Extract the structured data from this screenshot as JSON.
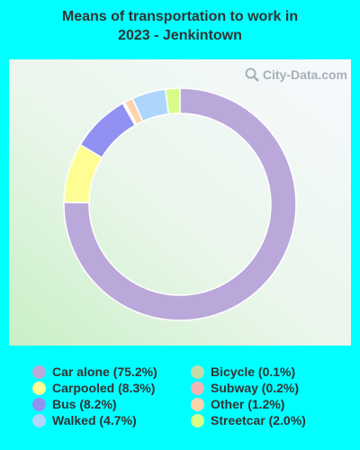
{
  "chart_data": {
    "type": "pie",
    "title_line1": "Means of transportation to work in",
    "title_line2": "2023 - Jenkintown",
    "watermark": "City-Data.com",
    "slices": [
      {
        "label": "Car alone (75.2%)",
        "value": 75.2,
        "color": "#bba8da"
      },
      {
        "label": "Carpooled (8.3%)",
        "value": 8.3,
        "color": "#fdfd94"
      },
      {
        "label": "Bus (8.2%)",
        "value": 8.2,
        "color": "#9191f1"
      },
      {
        "label": "Bicycle (0.1%)",
        "value": 0.1,
        "color": "#c2dcaa"
      },
      {
        "label": "Subway (0.2%)",
        "value": 0.2,
        "color": "#f2b4b4"
      },
      {
        "label": "Other (1.2%)",
        "value": 1.2,
        "color": "#fcd4ac"
      },
      {
        "label": "Walked (4.7%)",
        "value": 4.7,
        "color": "#aed6fc"
      },
      {
        "label": "Streetcar (2.0%)",
        "value": 2.0,
        "color": "#d8fc88"
      }
    ],
    "legend_placement": "bottom",
    "legend_order": [
      0,
      1,
      2,
      6,
      3,
      4,
      5,
      7
    ]
  }
}
